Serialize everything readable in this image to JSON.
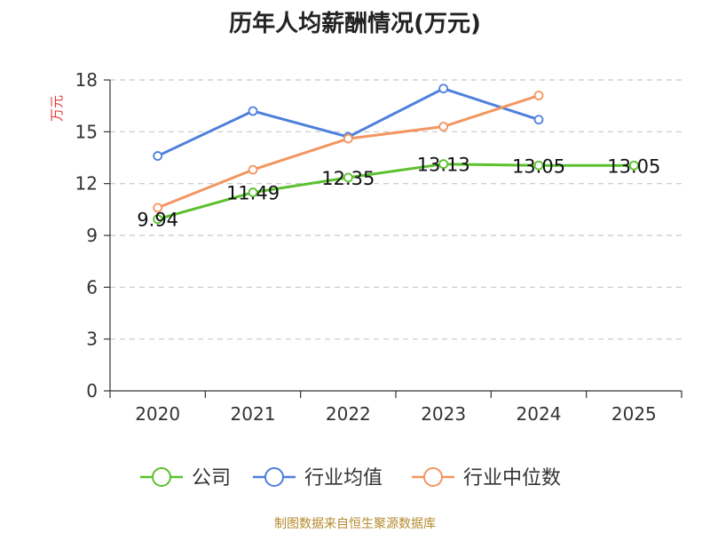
{
  "chart_data": {
    "type": "line",
    "title": "历年人均薪酬情况(万元)",
    "ylabel": "万元",
    "xlabel": "",
    "ylim": [
      0,
      18
    ],
    "yticks": [
      0,
      3,
      6,
      9,
      12,
      15,
      18
    ],
    "categories": [
      "2020",
      "2021",
      "2022",
      "2023",
      "2024",
      "2025"
    ],
    "grid": true,
    "legend_position": "bottom",
    "series": [
      {
        "name": "公司",
        "color": "#5cc02f",
        "values": [
          9.94,
          11.49,
          12.35,
          13.13,
          13.05,
          13.05
        ],
        "labels": [
          "9.94",
          "11.49",
          "12.35",
          "13.13",
          "13.05",
          "13.05"
        ]
      },
      {
        "name": "行业均值",
        "color": "#4f7fdd",
        "values": [
          13.6,
          16.2,
          14.7,
          17.5,
          15.7,
          null
        ]
      },
      {
        "name": "行业中位数",
        "color": "#f39560",
        "values": [
          10.6,
          12.8,
          14.6,
          15.3,
          17.1,
          null
        ]
      }
    ]
  },
  "source": "制图数据来自恒生聚源数据库"
}
